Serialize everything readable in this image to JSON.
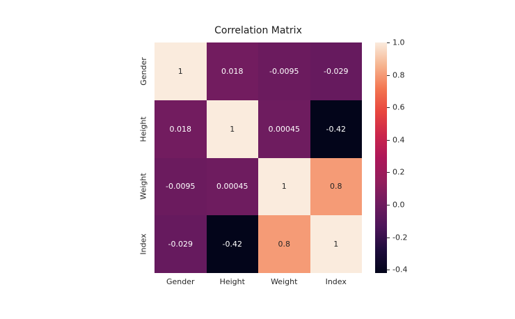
{
  "chart_data": {
    "type": "heatmap",
    "title": "Correlation Matrix",
    "categories": [
      "Gender",
      "Height",
      "Weight",
      "Index"
    ],
    "matrix": [
      [
        1,
        0.018,
        -0.0095,
        -0.029
      ],
      [
        0.018,
        1,
        0.00045,
        -0.42
      ],
      [
        -0.0095,
        0.00045,
        1,
        0.8
      ],
      [
        -0.029,
        -0.42,
        0.8,
        1
      ]
    ],
    "vmin": -0.42,
    "vmax": 1.0,
    "colormap": "rocket",
    "colorbar_position": "right",
    "colorbar_ticks": [
      {
        "value": 1.0,
        "label": "1.0"
      },
      {
        "value": 0.8,
        "label": "0.8"
      },
      {
        "value": 0.6,
        "label": "0.6"
      },
      {
        "value": 0.4,
        "label": "0.4"
      },
      {
        "value": 0.2,
        "label": "0.2"
      },
      {
        "value": 0.0,
        "label": "0.0"
      },
      {
        "value": -0.2,
        "label": "-0.2"
      },
      {
        "value": -0.4,
        "label": "-0.4"
      }
    ],
    "colormap_stops": [
      {
        "t": 0.0,
        "hex": "#03051A"
      },
      {
        "t": 0.1,
        "hex": "#1E0C3C"
      },
      {
        "t": 0.2,
        "hex": "#4C1559"
      },
      {
        "t": 0.3,
        "hex": "#6F1C5F"
      },
      {
        "t": 0.4,
        "hex": "#931E5C"
      },
      {
        "t": 0.5,
        "hex": "#AD1759"
      },
      {
        "t": 0.6,
        "hex": "#CB264B"
      },
      {
        "t": 0.7,
        "hex": "#E8463E"
      },
      {
        "t": 0.8,
        "hex": "#F37651"
      },
      {
        "t": 0.9,
        "hex": "#F6B48F"
      },
      {
        "t": 1.0,
        "hex": "#FAEBDD"
      }
    ],
    "background": "#ffffff",
    "dark_text_color": "#262626",
    "light_text_color": "#ffffff"
  }
}
